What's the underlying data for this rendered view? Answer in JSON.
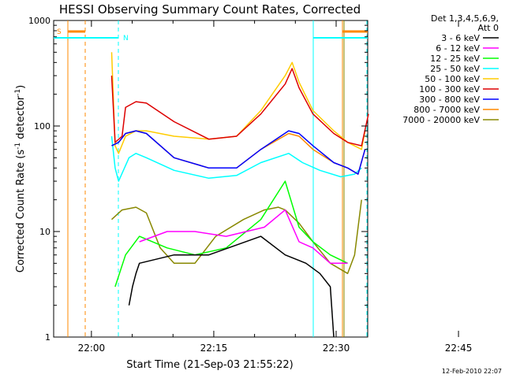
{
  "chart_data": {
    "type": "line",
    "title": "HESSI Observing Summary Count Rates, Corrected",
    "xlabel": "Start Time (21-Sep-03 21:55:22)",
    "ylabel_main": "Corrected Count Rate (s",
    "ylabel_sup1": "-1",
    "ylabel_mid": " detector",
    "ylabel_sup2": "-1",
    "ylabel_end": ")",
    "footer": "12-Feb-2010 22:07",
    "legend_header": [
      "Det 1,3,4,5,6,9,",
      "Att 0"
    ],
    "y_scale": "log",
    "ylim": [
      1,
      1000
    ],
    "y_ticks": [
      1,
      10,
      100,
      1000
    ],
    "y_tick_labels": [
      "1",
      "10",
      "100",
      "1000"
    ],
    "x_range_min": [
      0,
      38.5
    ],
    "x_ticks_min": [
      4.63,
      19.63,
      34.63,
      49.63,
      64.63,
      79.63,
      94.63
    ],
    "x_tick_labels": [
      "22:00",
      "22:15",
      "22:30",
      "22:45",
      "23:00",
      "23:15",
      "23:30"
    ],
    "marker_S": "S",
    "marker_N": "N",
    "series": [
      {
        "name": "3 - 6 keV",
        "color": "#000000",
        "values": [
          [
            17,
            2
          ],
          [
            18,
            3
          ],
          [
            19,
            4
          ],
          [
            20,
            5
          ],
          [
            30,
            6
          ],
          [
            40,
            6
          ],
          [
            55,
            9
          ],
          [
            62,
            6
          ],
          [
            68,
            5
          ],
          [
            72,
            4
          ],
          [
            75,
            3
          ],
          [
            76,
            1
          ]
        ]
      },
      {
        "name": "6 - 12 keV",
        "color": "#ff00ff",
        "values": [
          [
            20,
            8
          ],
          [
            28,
            10
          ],
          [
            36,
            10
          ],
          [
            45,
            9
          ],
          [
            56,
            11
          ],
          [
            62,
            16
          ],
          [
            66,
            8
          ],
          [
            70,
            7
          ],
          [
            75,
            5
          ],
          [
            80,
            5
          ]
        ]
      },
      {
        "name": "12 - 25 keV",
        "color": "#00ff00",
        "values": [
          [
            13,
            3
          ],
          [
            16,
            6
          ],
          [
            20,
            9
          ],
          [
            28,
            7
          ],
          [
            36,
            6
          ],
          [
            45,
            7
          ],
          [
            55,
            13
          ],
          [
            62,
            30
          ],
          [
            66,
            11
          ],
          [
            70,
            8
          ],
          [
            75,
            6
          ],
          [
            80,
            5
          ]
        ]
      },
      {
        "name": "25 - 50 keV",
        "color": "#00ffff",
        "values": [
          [
            12,
            80
          ],
          [
            13,
            40
          ],
          [
            14,
            30
          ],
          [
            17,
            50
          ],
          [
            19,
            55
          ],
          [
            22,
            50
          ],
          [
            30,
            38
          ],
          [
            40,
            32
          ],
          [
            48,
            34
          ],
          [
            55,
            45
          ],
          [
            63,
            55
          ],
          [
            67,
            45
          ],
          [
            72,
            38
          ],
          [
            78,
            33
          ],
          [
            82,
            35
          ],
          [
            84,
            40
          ]
        ]
      },
      {
        "name": "50 - 100 keV",
        "color": "#ffcc00",
        "values": [
          [
            12,
            500
          ],
          [
            13,
            65
          ],
          [
            14,
            55
          ],
          [
            16,
            80
          ],
          [
            19,
            90
          ],
          [
            22,
            90
          ],
          [
            30,
            80
          ],
          [
            40,
            75
          ],
          [
            48,
            80
          ],
          [
            55,
            140
          ],
          [
            62,
            300
          ],
          [
            64,
            400
          ],
          [
            66,
            260
          ],
          [
            70,
            140
          ],
          [
            76,
            90
          ],
          [
            80,
            70
          ],
          [
            84,
            60
          ],
          [
            85,
            90
          ]
        ]
      },
      {
        "name": "100 - 300 keV",
        "color": "#dd0000",
        "values": [
          [
            12,
            300
          ],
          [
            13,
            70
          ],
          [
            15,
            80
          ],
          [
            16,
            150
          ],
          [
            19,
            170
          ],
          [
            22,
            165
          ],
          [
            30,
            110
          ],
          [
            40,
            75
          ],
          [
            48,
            80
          ],
          [
            55,
            130
          ],
          [
            62,
            250
          ],
          [
            64,
            350
          ],
          [
            66,
            230
          ],
          [
            70,
            130
          ],
          [
            76,
            85
          ],
          [
            80,
            70
          ],
          [
            84,
            65
          ],
          [
            86,
            130
          ]
        ]
      },
      {
        "name": "300 - 800 keV",
        "color": "#0000ff",
        "values": [
          [
            12,
            65
          ],
          [
            14,
            70
          ],
          [
            16,
            85
          ],
          [
            19,
            90
          ],
          [
            22,
            85
          ],
          [
            30,
            50
          ],
          [
            40,
            40
          ],
          [
            48,
            40
          ],
          [
            55,
            60
          ],
          [
            63,
            90
          ],
          [
            66,
            85
          ],
          [
            70,
            65
          ],
          [
            76,
            45
          ],
          [
            80,
            40
          ],
          [
            83,
            35
          ],
          [
            85,
            60
          ]
        ]
      },
      {
        "name": "800 - 7000 keV",
        "color": "#ff8800",
        "values": [
          [
            12,
            65
          ],
          [
            14,
            70
          ],
          [
            16,
            85
          ],
          [
            19,
            90
          ],
          [
            22,
            85
          ],
          [
            30,
            50
          ],
          [
            40,
            40
          ],
          [
            48,
            40
          ],
          [
            55,
            60
          ],
          [
            63,
            85
          ],
          [
            66,
            80
          ],
          [
            70,
            60
          ],
          [
            76,
            45
          ],
          [
            80,
            40
          ],
          [
            83,
            35
          ],
          [
            85,
            60
          ]
        ]
      },
      {
        "name": "7000 - 20000 keV",
        "color": "#888800",
        "values": [
          [
            12,
            13
          ],
          [
            15,
            16
          ],
          [
            19,
            17
          ],
          [
            22,
            15
          ],
          [
            26,
            7
          ],
          [
            30,
            5
          ],
          [
            36,
            5
          ],
          [
            42,
            9
          ],
          [
            50,
            13
          ],
          [
            56,
            16
          ],
          [
            60,
            17
          ],
          [
            62,
            16
          ],
          [
            66,
            12
          ],
          [
            70,
            8
          ],
          [
            75,
            5
          ],
          [
            80,
            4
          ],
          [
            82,
            6
          ],
          [
            84,
            20
          ]
        ]
      }
    ]
  }
}
